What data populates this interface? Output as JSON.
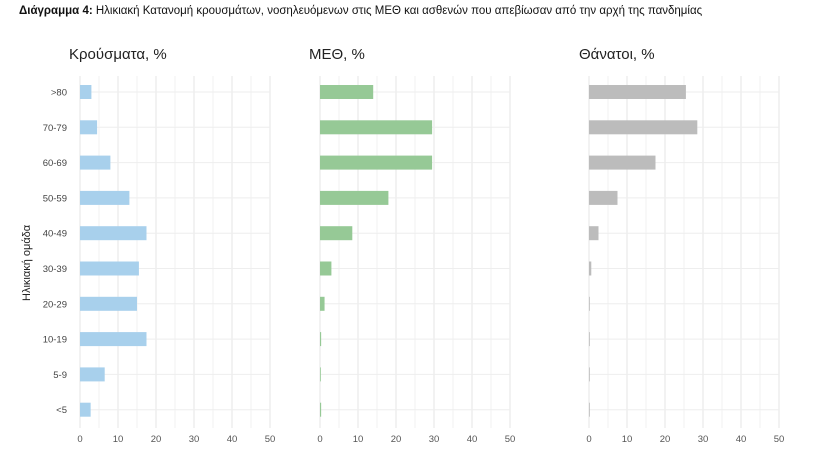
{
  "caption": {
    "label": "Διάγραμμα 4:",
    "text": " Ηλικιακή Κατανομή κρουσμάτων, νοσηλευόμενων στις ΜΕΘ και ασθενών που απεβίωσαν από την αρχή της πανδημίας"
  },
  "chart_data": {
    "type": "bar",
    "orientation": "horizontal",
    "ylabel": "Ηλικιακή ομάδα",
    "categories": [
      ">80",
      "70-79",
      "60-69",
      "50-59",
      "40-49",
      "30-39",
      "20-29",
      "10-19",
      "5-9",
      "<5"
    ],
    "xlim": [
      0,
      50
    ],
    "xticks": [
      0,
      10,
      20,
      30,
      40,
      50
    ],
    "grid": true,
    "panels": [
      {
        "title": "Κρούσματα, %",
        "color": "#a8d0ec",
        "values": [
          3.0,
          4.5,
          8.0,
          13.0,
          17.5,
          15.5,
          15.0,
          17.5,
          6.5,
          2.8
        ]
      },
      {
        "title": "ΜΕΘ, %",
        "color": "#96c996",
        "values": [
          14.0,
          29.5,
          29.5,
          18.0,
          8.5,
          3.0,
          1.2,
          0.3,
          0.2,
          0.3
        ]
      },
      {
        "title": "Θάνατοι, %",
        "color": "#bcbcbc",
        "values": [
          25.5,
          28.5,
          17.5,
          7.5,
          2.5,
          0.6,
          0.2,
          0.1,
          0.05,
          0.1
        ]
      }
    ]
  }
}
